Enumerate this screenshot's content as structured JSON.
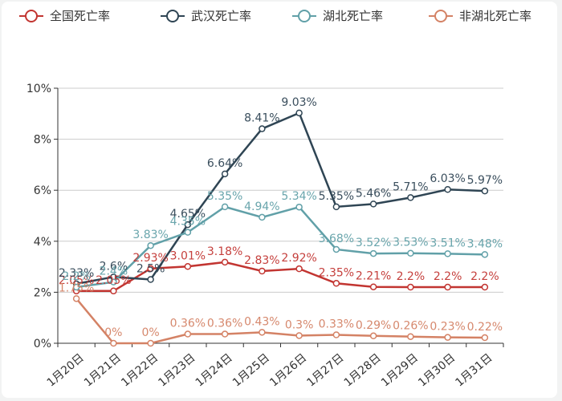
{
  "chart_data": {
    "type": "line",
    "categories": [
      "1月20日",
      "1月21日",
      "1月22日",
      "1月23日",
      "1月24日",
      "1月25日",
      "1月26日",
      "1月27日",
      "1月28日",
      "1月29日",
      "1月30日",
      "1月31日"
    ],
    "y_ticks": [
      "0%",
      "2%",
      "4%",
      "6%",
      "8%",
      "10%"
    ],
    "ylim": [
      0,
      10
    ],
    "grid": true,
    "legend_position": "top",
    "series": [
      {
        "name": "全国死亡率",
        "color": "#c23531",
        "values": [
          2.05,
          2.05,
          2.93,
          3.01,
          3.18,
          2.83,
          2.92,
          2.35,
          2.21,
          2.2,
          2.2,
          2.2
        ],
        "labels": [
          "2.05%",
          "2.05%",
          "2.93%",
          "3.01%",
          "3.18%",
          "2.83%",
          "2.92%",
          "2.35%",
          "2.21%",
          "2.2%",
          "2.2%",
          "2.2%"
        ]
      },
      {
        "name": "武汉死亡率",
        "color": "#2f4554",
        "values": [
          2.33,
          2.6,
          2.5,
          4.65,
          6.64,
          8.41,
          9.03,
          5.35,
          5.46,
          5.71,
          6.03,
          5.97
        ],
        "labels": [
          "2.33%",
          "2.6%",
          "2.5%",
          "4.65%",
          "6.64%",
          "8.41%",
          "9.03%",
          "5.35%",
          "5.46%",
          "5.71%",
          "6.03%",
          "5.97%"
        ]
      },
      {
        "name": "湖北死亡率",
        "color": "#61a0a8",
        "values": [
          2.2,
          2.4,
          3.83,
          4.35,
          5.35,
          4.94,
          5.34,
          3.68,
          3.52,
          3.53,
          3.51,
          3.48
        ],
        "labels": [
          "2.2%",
          "2.4%",
          "3.83%",
          "4.35%",
          "5.35%",
          "4.94%",
          "5.34%",
          "3.68%",
          "3.52%",
          "3.53%",
          "3.51%",
          "3.48%"
        ]
      },
      {
        "name": "非湖北死亡率",
        "color": "#d48265",
        "values": [
          1.75,
          0,
          0,
          0.36,
          0.36,
          0.43,
          0.3,
          0.33,
          0.29,
          0.26,
          0.23,
          0.22
        ],
        "labels": [
          "1.75%",
          "0%",
          "0%",
          "0.36%",
          "0.36%",
          "0.43%",
          "0.3%",
          "0.33%",
          "0.29%",
          "0.26%",
          "0.23%",
          "0.22%"
        ]
      }
    ]
  }
}
